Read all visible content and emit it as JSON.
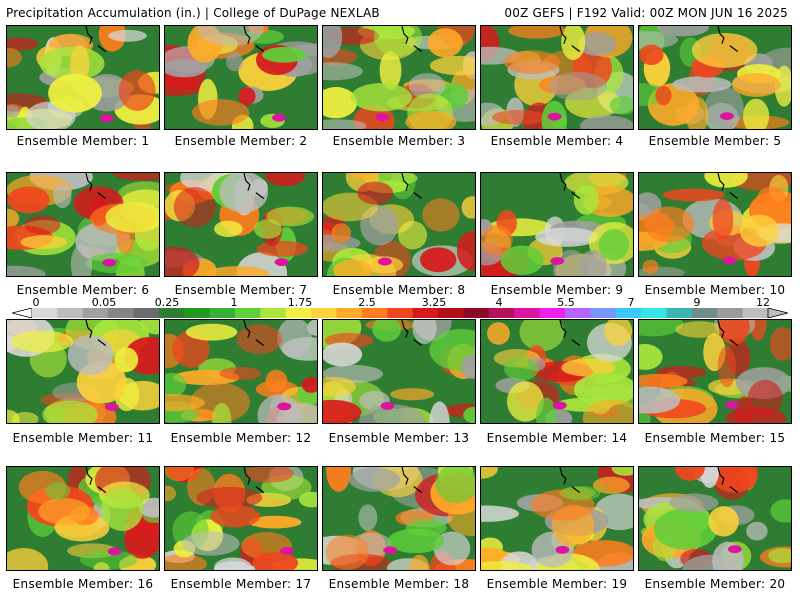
{
  "header": {
    "left": "Precipitation Accumulation (in.) | College of DuPage NEXLAB",
    "right": "00Z GEFS | F192 Valid: 00Z MON JUN 16 2025"
  },
  "members": [
    {
      "label": "Ensemble Member: 1"
    },
    {
      "label": "Ensemble Member: 2"
    },
    {
      "label": "Ensemble Member: 3"
    },
    {
      "label": "Ensemble Member: 4"
    },
    {
      "label": "Ensemble Member: 5"
    },
    {
      "label": "Ensemble Member: 6"
    },
    {
      "label": "Ensemble Member: 7"
    },
    {
      "label": "Ensemble Member: 8"
    },
    {
      "label": "Ensemble Member: 9"
    },
    {
      "label": "Ensemble Member: 10"
    },
    {
      "label": "Ensemble Member: 11"
    },
    {
      "label": "Ensemble Member: 12"
    },
    {
      "label": "Ensemble Member: 13"
    },
    {
      "label": "Ensemble Member: 14"
    },
    {
      "label": "Ensemble Member: 15"
    },
    {
      "label": "Ensemble Member: 16"
    },
    {
      "label": "Ensemble Member: 17"
    },
    {
      "label": "Ensemble Member: 18"
    },
    {
      "label": "Ensemble Member: 19"
    },
    {
      "label": "Ensemble Member: 20"
    }
  ],
  "colorbar": {
    "labels": [
      "0",
      "0.05",
      "0.25",
      "1",
      "1.75",
      "2.5",
      "3.25",
      "4",
      "5.5",
      "7",
      "9",
      "12"
    ],
    "colors": [
      "#d9d9d9",
      "#bdbdbd",
      "#a0a0a0",
      "#858585",
      "#6b6b6b",
      "#2e7d32",
      "#1f9a1f",
      "#38b038",
      "#5fcf3a",
      "#a8e63c",
      "#f0f040",
      "#ffd23c",
      "#ffaa28",
      "#ff7d1e",
      "#f0461e",
      "#d7191c",
      "#b40f14",
      "#8c0a28",
      "#b4125a",
      "#dc14a0",
      "#f01eeb",
      "#b464ff",
      "#7896ff",
      "#3cc8ff",
      "#32e6e6",
      "#3cb4b4",
      "#6e8c8c",
      "#9a9a9a",
      "#bebebe"
    ]
  }
}
